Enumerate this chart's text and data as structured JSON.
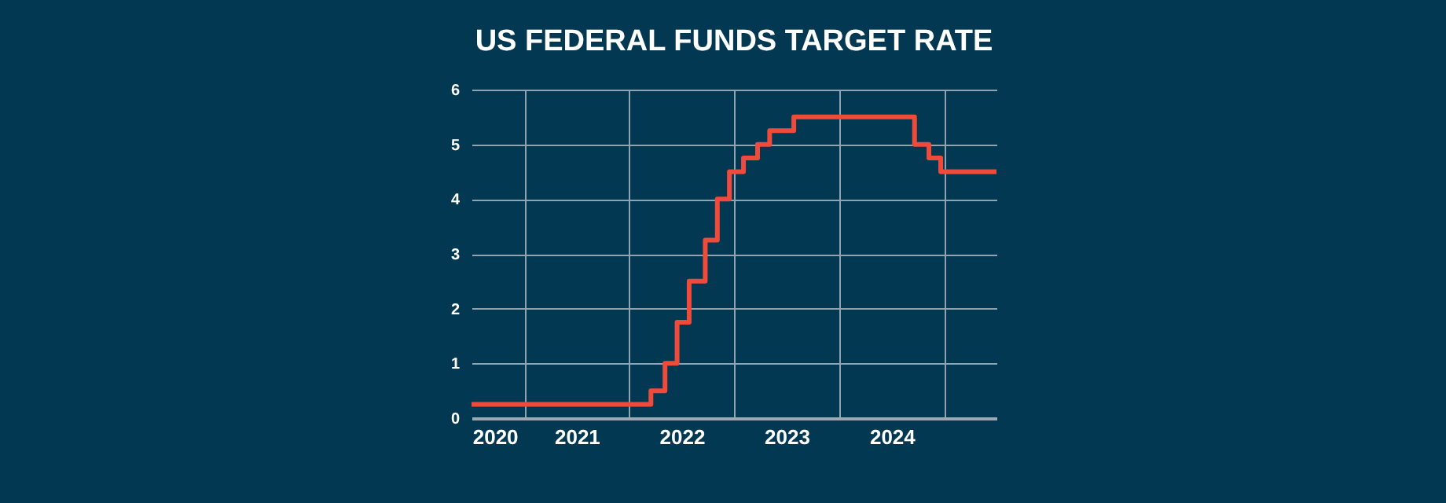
{
  "chart_data": {
    "type": "step",
    "title": "US FEDERAL FUNDS TARGET RATE",
    "x": [
      "2020-07-01",
      "2022-03-17",
      "2022-05-05",
      "2022-06-16",
      "2022-07-28",
      "2022-09-22",
      "2022-11-03",
      "2022-12-15",
      "2023-02-02",
      "2023-03-23",
      "2023-05-04",
      "2023-07-27",
      "2024-09-19",
      "2024-11-08",
      "2024-12-19",
      "2025-07-01"
    ],
    "values": [
      0.25,
      0.5,
      1.0,
      1.75,
      2.5,
      3.25,
      4.0,
      4.5,
      4.75,
      5.0,
      5.25,
      5.5,
      5.0,
      4.75,
      4.5,
      4.5
    ],
    "color": "#f04a3a",
    "xlim": [
      "2020-07-01",
      "2025-07-01"
    ],
    "xticks": [
      {
        "value": "2020-09-20",
        "label": "2020"
      },
      {
        "value": "2021-01-01",
        "label": null
      },
      {
        "value": "2021-07-02",
        "label": "2021"
      },
      {
        "value": "2022-01-01",
        "label": null
      },
      {
        "value": "2022-07-02",
        "label": "2022"
      },
      {
        "value": "2023-01-01",
        "label": null
      },
      {
        "value": "2023-07-02",
        "label": "2023"
      },
      {
        "value": "2024-01-01",
        "label": null
      },
      {
        "value": "2024-07-02",
        "label": "2024"
      },
      {
        "value": "2025-01-01",
        "label": null
      }
    ],
    "ylim": [
      0,
      6
    ],
    "yticks": [
      0,
      1,
      2,
      3,
      4,
      5,
      6
    ],
    "grid": true,
    "line_style": "solid"
  }
}
